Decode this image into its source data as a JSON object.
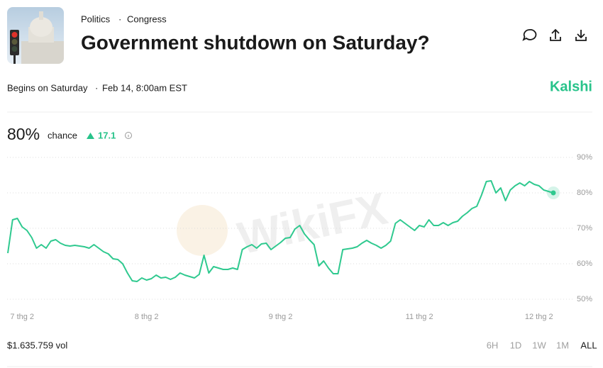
{
  "header": {
    "category": "Politics",
    "subcategory": "Congress",
    "title": "Government shutdown on Saturday?",
    "begins": "Begins on Saturday",
    "date": "Feb 14, 8:00am EST",
    "brand": "Kalshi"
  },
  "summary": {
    "probability": "80%",
    "probability_label": "chance",
    "change": "17.1"
  },
  "watermark": "WikiFX",
  "chart_data": {
    "type": "line",
    "color": "#2fc98f",
    "grid": true,
    "ylim": [
      48,
      92
    ],
    "yticks": [
      {
        "value": 50,
        "label": "50%"
      },
      {
        "value": 60,
        "label": "60%"
      },
      {
        "value": 70,
        "label": "70%"
      },
      {
        "value": 80,
        "label": "80%"
      },
      {
        "value": 90,
        "label": "90%"
      }
    ],
    "categories": [
      null,
      null,
      null,
      "7 thg 2",
      null,
      null,
      null,
      null,
      null,
      null,
      null,
      null,
      null,
      null,
      null,
      null,
      null,
      null,
      null,
      null,
      null,
      null,
      null,
      null,
      null,
      null,
      null,
      null,
      null,
      "8 thg 2",
      null,
      null,
      null,
      null,
      null,
      null,
      null,
      null,
      null,
      null,
      null,
      null,
      null,
      null,
      null,
      null,
      null,
      null,
      null,
      null,
      null,
      null,
      null,
      null,
      null,
      null,
      null,
      "9 thg 2",
      null,
      null,
      null,
      null,
      null,
      null,
      null,
      null,
      null,
      null,
      null,
      null,
      null,
      null,
      null,
      null,
      null,
      null,
      null,
      null,
      null,
      null,
      null,
      null,
      null,
      null,
      null,
      null,
      "11 thg 2",
      null,
      null,
      null,
      null,
      null,
      null,
      null,
      null,
      null,
      null,
      null,
      null,
      null,
      null,
      null,
      null,
      null,
      null,
      null,
      null,
      null,
      null,
      null,
      null,
      "12 thg 2",
      null,
      null,
      null
    ],
    "values": [
      63,
      72.4,
      72.8,
      70.4,
      69.4,
      67.4,
      64.4,
      65.4,
      64.4,
      66.4,
      66.8,
      65.8,
      65.2,
      65,
      65.2,
      65,
      64.8,
      64.4,
      65.4,
      64.4,
      63.4,
      62.8,
      61.4,
      61.2,
      60,
      57.4,
      55.2,
      55,
      56,
      55.4,
      55.8,
      56.8,
      56,
      56.2,
      55.6,
      56.2,
      57.4,
      56.8,
      56.4,
      56,
      57,
      62.4,
      57.4,
      59.2,
      58.8,
      58.4,
      58.4,
      58.8,
      58.4,
      64,
      64.8,
      65.4,
      64.4,
      65.6,
      65.8,
      64,
      65,
      66,
      67.2,
      67.4,
      69.8,
      70.8,
      68.4,
      66.8,
      65.4,
      59.4,
      60.8,
      58.8,
      57.2,
      57.2,
      64,
      64.2,
      64.4,
      64.8,
      65.8,
      66.6,
      65.8,
      65.2,
      64.4,
      65.2,
      66.4,
      71.4,
      72.4,
      71.4,
      70.4,
      69.4,
      70.8,
      70.4,
      72.4,
      70.8,
      70.8,
      71.6,
      70.8,
      71.6,
      72,
      73.4,
      74.4,
      75.6,
      76.2,
      79.4,
      83.2,
      83.4,
      80,
      81.4,
      77.8,
      80.8,
      82,
      82.8,
      82,
      83.2,
      82.4,
      82,
      80.8,
      80.4,
      80
    ]
  },
  "footer": {
    "volume": "$1.635.759 vol",
    "ranges": [
      "6H",
      "1D",
      "1W",
      "1M",
      "ALL"
    ]
  }
}
